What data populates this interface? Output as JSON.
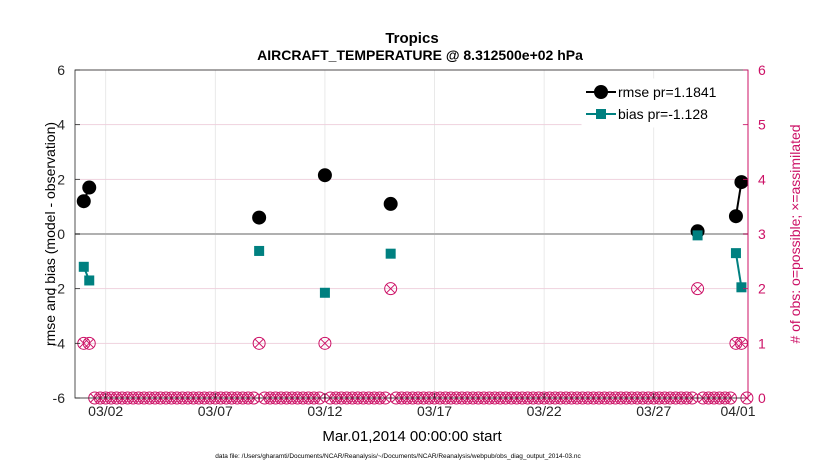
{
  "chart_data": {
    "type": "line",
    "title": "Tropics",
    "subtitle": "AIRCRAFT_TEMPERATURE @ 8.312500e+02 hPa",
    "xlabel": "Mar.01,2014 00:00:00 start",
    "ylabel": "rmse and bias (model - observation)",
    "y2label": "# of obs: o=possible; ×=assimilated",
    "footnote": "data file: /Users/gharamti/Documents/NCAR/Reanalysis/~/Documents/NCAR/Reanalysis/webpub/obs_diag_output_2014-03.nc",
    "xlim": [
      0.6,
      31.3
    ],
    "ylim": [
      -6,
      6
    ],
    "y2lim": [
      0,
      6
    ],
    "grid": true,
    "legend_position": "top-right",
    "x_ticks": [
      {
        "value": 2,
        "label": "03/02"
      },
      {
        "value": 7,
        "label": "03/07"
      },
      {
        "value": 12,
        "label": "03/12"
      },
      {
        "value": 17,
        "label": "03/17"
      },
      {
        "value": 22,
        "label": "03/22"
      },
      {
        "value": 27,
        "label": "03/27"
      },
      {
        "value": 32,
        "label": "04/01"
      }
    ],
    "y_ticks": [
      {
        "value": -6,
        "label": "-6"
      },
      {
        "value": -4,
        "label": "-4"
      },
      {
        "value": -2,
        "label": "-2"
      },
      {
        "value": 0,
        "label": "0"
      },
      {
        "value": 2,
        "label": "2"
      },
      {
        "value": 4,
        "label": "4"
      },
      {
        "value": 6,
        "label": "6"
      }
    ],
    "y2_ticks": [
      {
        "value": 0,
        "label": "0"
      },
      {
        "value": 1,
        "label": "1"
      },
      {
        "value": 2,
        "label": "2"
      },
      {
        "value": 3,
        "label": "3"
      },
      {
        "value": 4,
        "label": "4"
      },
      {
        "value": 5,
        "label": "5"
      },
      {
        "value": 6,
        "label": "6"
      }
    ],
    "series": [
      {
        "name": "rmse",
        "legend_label": "rmse pr=1.1841",
        "color": "#000000",
        "marker": "circle",
        "points": [
          [
            1.0,
            1.2
          ],
          [
            1.25,
            1.7
          ],
          [
            9.0,
            0.6
          ],
          [
            12.0,
            2.15
          ],
          [
            15.0,
            1.1
          ],
          [
            29.0,
            0.1
          ],
          [
            30.75,
            0.65
          ],
          [
            31.0,
            1.9
          ]
        ]
      },
      {
        "name": "bias",
        "legend_label": "bias pr=-1.128",
        "color": "#008080",
        "marker": "square",
        "points": [
          [
            1.0,
            -1.2
          ],
          [
            1.25,
            -1.7
          ],
          [
            9.0,
            -0.62
          ],
          [
            12.0,
            -2.15
          ],
          [
            15.0,
            -0.72
          ],
          [
            29.0,
            -0.05
          ],
          [
            30.75,
            -0.7
          ],
          [
            31.0,
            -1.95
          ]
        ]
      }
    ],
    "obs_counts": {
      "axis": "right",
      "color": "#cc1166",
      "possible": [
        [
          1.0,
          1
        ],
        [
          1.25,
          1
        ],
        [
          9.0,
          1
        ],
        [
          12.0,
          1
        ],
        [
          15.0,
          2
        ],
        [
          29.0,
          2
        ],
        [
          30.75,
          1
        ],
        [
          31.0,
          1
        ]
      ],
      "assimilated": [
        [
          1.0,
          1
        ],
        [
          1.25,
          1
        ],
        [
          9.0,
          1
        ],
        [
          12.0,
          1
        ],
        [
          15.0,
          2
        ],
        [
          29.0,
          2
        ],
        [
          30.75,
          1
        ],
        [
          31.0,
          1
        ]
      ],
      "zero_count_x_range": [
        1.0,
        31.25
      ],
      "zero_count_step": 0.25
    },
    "zero_line": 0
  }
}
